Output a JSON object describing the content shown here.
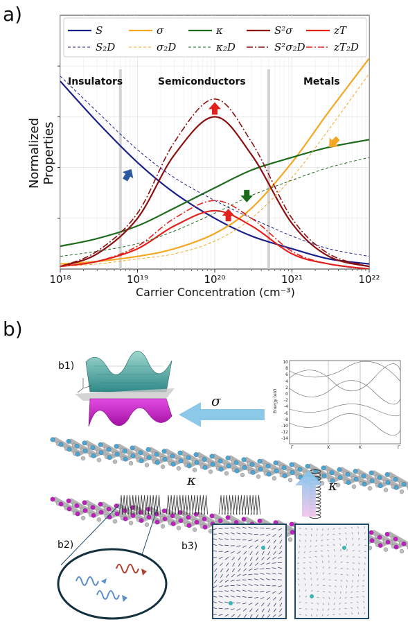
{
  "panel_a_label": "a)",
  "panel_b_label": "b)",
  "sub_b1": "b1)",
  "sub_b2": "b2)",
  "sub_b3": "b3)",
  "sigma_symbol": "σ",
  "kappa_symbol_mid": "κ",
  "kappa_symbol_right": "κ",
  "band_ylabel": "Energy (eV)",
  "band_ticks": [
    "10",
    "8",
    "6",
    "4",
    "2",
    "0",
    "-2",
    "-4",
    "-6",
    "-8",
    "-10",
    "-12",
    "-14"
  ],
  "band_kpoints": [
    "Γ",
    "X",
    "K",
    "Γ"
  ],
  "colors": {
    "S": "#1b1f8a",
    "sigma": "#f5a623",
    "kappa": "#1e6b1e",
    "pf": "#8b0f0f",
    "zT": "#e3211c",
    "layer_top": "#4aa8d8",
    "layer_bottom": "#c21fc2",
    "arrow_sigma": "#8cc8e8"
  },
  "chart_data": {
    "type": "line",
    "xlabel": "Carrier Concentration (cm$^{-3}$)",
    "xlabel_display": "Carrier Concentration (cm⁻³)",
    "ylabel": "Normalized Properties",
    "x_scale": "log",
    "xlim": [
      1e+18,
      1e+22
    ],
    "x_ticks": [
      "10¹⁸",
      "10¹⁹",
      "10²⁰",
      "10²¹",
      "10²²"
    ],
    "ylim": [
      0,
      1
    ],
    "grid": true,
    "legend_position": "top",
    "regions": [
      {
        "label": "Insulators",
        "from": 1e+18,
        "to": 6e+18
      },
      {
        "label": "Semiconductors",
        "from": 6e+18,
        "to": 5e+20
      },
      {
        "label": "Metals",
        "from": 5e+20,
        "to": 1e+22
      }
    ],
    "x": [
      1e+18,
      3e+18,
      1e+19,
      3e+19,
      1e+20,
      3e+20,
      1e+21,
      3e+21,
      1e+22
    ],
    "series": [
      {
        "name": "S",
        "style": "solid",
        "values": [
          0.74,
          0.58,
          0.42,
          0.3,
          0.2,
          0.13,
          0.08,
          0.04,
          0.02
        ]
      },
      {
        "name": "σ",
        "style": "solid",
        "values": [
          0.02,
          0.03,
          0.05,
          0.08,
          0.14,
          0.24,
          0.42,
          0.62,
          0.83
        ]
      },
      {
        "name": "κ",
        "style": "solid",
        "values": [
          0.09,
          0.12,
          0.17,
          0.24,
          0.32,
          0.39,
          0.44,
          0.48,
          0.51
        ]
      },
      {
        "name": "S²σ",
        "style": "solid",
        "values": [
          0.01,
          0.06,
          0.2,
          0.45,
          0.6,
          0.45,
          0.18,
          0.05,
          0.01
        ]
      },
      {
        "name": "zT",
        "style": "solid",
        "values": [
          0.01,
          0.03,
          0.08,
          0.17,
          0.23,
          0.17,
          0.06,
          0.02,
          0.0
        ]
      },
      {
        "name": "S₂D",
        "style": "dashed",
        "values": [
          0.76,
          0.62,
          0.47,
          0.36,
          0.27,
          0.2,
          0.13,
          0.08,
          0.05
        ]
      },
      {
        "name": "σ₂D",
        "style": "dashed",
        "values": [
          0.01,
          0.02,
          0.04,
          0.06,
          0.11,
          0.2,
          0.36,
          0.55,
          0.77
        ]
      },
      {
        "name": "κ₂D",
        "style": "dashed",
        "values": [
          0.05,
          0.07,
          0.1,
          0.15,
          0.22,
          0.29,
          0.35,
          0.4,
          0.44
        ]
      },
      {
        "name": "S²σ₂D",
        "style": "dashdot",
        "values": [
          0.01,
          0.07,
          0.22,
          0.5,
          0.67,
          0.5,
          0.2,
          0.06,
          0.01
        ]
      },
      {
        "name": "zT₂D",
        "style": "dashdot",
        "values": [
          0.01,
          0.03,
          0.09,
          0.2,
          0.27,
          0.2,
          0.07,
          0.02,
          0.0
        ]
      }
    ],
    "legend_entries": [
      [
        "S",
        "σ",
        "κ",
        "S²σ",
        "zT"
      ],
      [
        "S₂D",
        "σ₂D",
        "κ₂D",
        "S²σ₂D",
        "zT₂D"
      ]
    ]
  }
}
